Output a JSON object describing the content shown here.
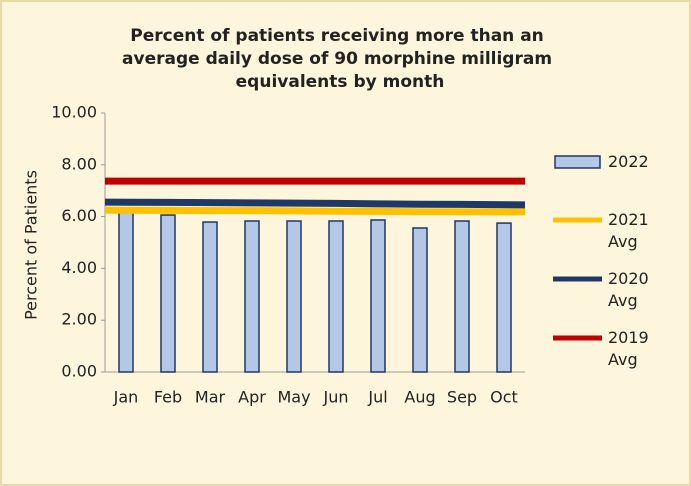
{
  "chart_data": {
    "type": "bar",
    "title": "Percent of patients receiving more than an average daily dose of 90 morphine milligram equivalents by month",
    "y_label": "Percent of Patients",
    "categories": [
      "Jan",
      "Feb",
      "Mar",
      "Apr",
      "May",
      "Jun",
      "Jul",
      "Aug",
      "Sep",
      "Oct"
    ],
    "series": [
      {
        "name": "2022",
        "type": "bar",
        "color": "#b4c7e7",
        "edge_color": "#1f3864",
        "values": [
          6.2,
          6.06,
          5.79,
          5.83,
          5.83,
          5.83,
          5.87,
          5.56,
          5.83,
          5.75
        ]
      },
      {
        "name": "2021 Avg",
        "type": "line",
        "color": "#ffc000",
        "values": [
          6.25,
          6.24,
          6.23,
          6.23,
          6.22,
          6.21,
          6.2,
          6.19,
          6.19,
          6.18
        ]
      },
      {
        "name": "2020 Avg",
        "type": "line",
        "color": "#1f3864",
        "values": [
          6.56,
          6.55,
          6.54,
          6.53,
          6.52,
          6.51,
          6.49,
          6.48,
          6.47,
          6.45
        ]
      },
      {
        "name": "2019 Avg",
        "type": "line",
        "color": "#c00000",
        "values": [
          7.37,
          7.37,
          7.37,
          7.37,
          7.37,
          7.37,
          7.37,
          7.37,
          7.37,
          7.37
        ]
      }
    ],
    "ylim": [
      0,
      10
    ],
    "yticks": [
      {
        "value": 0,
        "label": "0.00"
      },
      {
        "value": 2,
        "label": "2.00"
      },
      {
        "value": 4,
        "label": "4.00"
      },
      {
        "value": 6,
        "label": "6.00"
      },
      {
        "value": 8,
        "label": "8.00"
      },
      {
        "value": 10,
        "label": "10.00"
      }
    ],
    "legend": "right",
    "background": "#fef6dc"
  }
}
